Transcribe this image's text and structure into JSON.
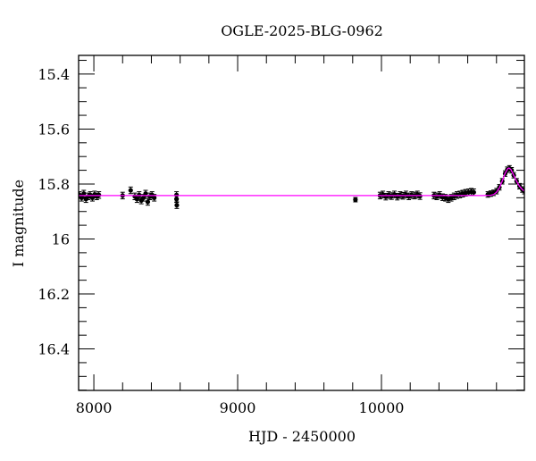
{
  "chart_data": {
    "type": "scatter",
    "title": "OGLE-2025-BLG-0962",
    "xlabel": "HJD - 2450000",
    "ylabel": "I magnitude",
    "xlim": [
      7894,
      10994
    ],
    "ylim": [
      15.332,
      16.551
    ],
    "y_inverted": true,
    "x_ticks": [
      8000,
      9000,
      10000
    ],
    "x_tick_labels": [
      "8000",
      "9000",
      "10000"
    ],
    "x_minor_step": 200,
    "y_ticks": [
      15.4,
      15.6,
      15.8,
      16.0,
      16.2,
      16.4
    ],
    "y_tick_labels": [
      "15.4",
      "15.6",
      "15.8",
      "16",
      "16.2",
      "16.4"
    ],
    "y_minor_step": 0.05,
    "grid": false,
    "colors": {
      "points": "#000000",
      "model": "#ff00ff"
    },
    "points": [
      [
        7900,
        15.84,
        0.012
      ],
      [
        7915,
        15.85,
        0.012
      ],
      [
        7930,
        15.835,
        0.012
      ],
      [
        7945,
        15.855,
        0.012
      ],
      [
        7960,
        15.845,
        0.012
      ],
      [
        7975,
        15.84,
        0.012
      ],
      [
        7990,
        15.85,
        0.012
      ],
      [
        8005,
        15.838,
        0.012
      ],
      [
        8020,
        15.845,
        0.012
      ],
      [
        8035,
        15.84,
        0.012
      ],
      [
        8200,
        15.842,
        0.012
      ],
      [
        8256,
        15.823,
        0.012
      ],
      [
        8285,
        15.845,
        0.012
      ],
      [
        8300,
        15.855,
        0.012
      ],
      [
        8315,
        15.84,
        0.012
      ],
      [
        8330,
        15.86,
        0.012
      ],
      [
        8345,
        15.85,
        0.012
      ],
      [
        8360,
        15.835,
        0.012
      ],
      [
        8375,
        15.865,
        0.012
      ],
      [
        8390,
        15.845,
        0.012
      ],
      [
        8405,
        15.84,
        0.012
      ],
      [
        8420,
        15.85,
        0.012
      ],
      [
        8575,
        15.84,
        0.012
      ],
      [
        8575,
        15.855,
        0.012
      ],
      [
        8577,
        15.877,
        0.012
      ],
      [
        9819,
        15.857,
        0.008
      ],
      [
        9990,
        15.842,
        0.012
      ],
      [
        10010,
        15.838,
        0.012
      ],
      [
        10030,
        15.846,
        0.012
      ],
      [
        10050,
        15.84,
        0.012
      ],
      [
        10070,
        15.844,
        0.012
      ],
      [
        10090,
        15.838,
        0.012
      ],
      [
        10110,
        15.846,
        0.012
      ],
      [
        10130,
        15.84,
        0.012
      ],
      [
        10150,
        15.843,
        0.012
      ],
      [
        10170,
        15.838,
        0.012
      ],
      [
        10190,
        15.845,
        0.012
      ],
      [
        10210,
        15.84,
        0.012
      ],
      [
        10230,
        15.842,
        0.012
      ],
      [
        10250,
        15.838,
        0.012
      ],
      [
        10268,
        15.844,
        0.012
      ],
      [
        10365,
        15.842,
        0.012
      ],
      [
        10385,
        15.845,
        0.012
      ],
      [
        10405,
        15.84,
        0.012
      ],
      [
        10425,
        15.848,
        0.012
      ],
      [
        10445,
        15.85,
        0.012
      ],
      [
        10465,
        15.855,
        0.012
      ],
      [
        10485,
        15.85,
        0.012
      ],
      [
        10505,
        15.845,
        0.012
      ],
      [
        10525,
        15.84,
        0.012
      ],
      [
        10545,
        15.838,
        0.012
      ],
      [
        10565,
        15.835,
        0.012
      ],
      [
        10585,
        15.832,
        0.012
      ],
      [
        10605,
        15.83,
        0.012
      ],
      [
        10625,
        15.828,
        0.012
      ],
      [
        10642,
        15.83,
        0.012
      ],
      [
        10740,
        15.838,
        0.01
      ],
      [
        10760,
        15.835,
        0.01
      ],
      [
        10780,
        15.832,
        0.01
      ],
      [
        10800,
        15.826,
        0.01
      ],
      [
        10820,
        15.812,
        0.01
      ],
      [
        10840,
        15.79,
        0.01
      ],
      [
        10860,
        15.762,
        0.01
      ],
      [
        10875,
        15.748,
        0.01
      ],
      [
        10890,
        15.743,
        0.01
      ],
      [
        10905,
        15.75,
        0.01
      ],
      [
        10920,
        15.768,
        0.01
      ],
      [
        10940,
        15.79,
        0.01
      ],
      [
        10960,
        15.808,
        0.01
      ],
      [
        10980,
        15.82,
        0.01
      ],
      [
        10994,
        15.826,
        0.01
      ]
    ],
    "model": [
      [
        7894,
        15.842
      ],
      [
        10700,
        15.842
      ],
      [
        10760,
        15.841
      ],
      [
        10780,
        15.838
      ],
      [
        10800,
        15.83
      ],
      [
        10820,
        15.814
      ],
      [
        10840,
        15.789
      ],
      [
        10860,
        15.761
      ],
      [
        10880,
        15.743
      ],
      [
        10887,
        15.742
      ],
      [
        10900,
        15.747
      ],
      [
        10920,
        15.769
      ],
      [
        10940,
        15.79
      ],
      [
        10960,
        15.808
      ],
      [
        10980,
        15.82
      ],
      [
        10994,
        15.826
      ]
    ]
  }
}
